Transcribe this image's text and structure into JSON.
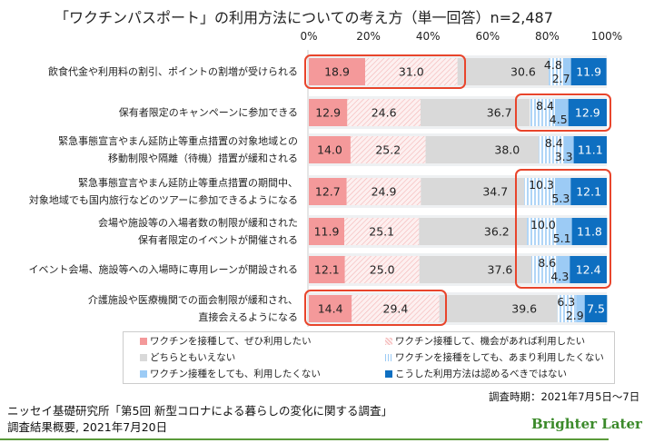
{
  "chart_data": {
    "type": "bar",
    "stacked": true,
    "orientation": "horizontal",
    "title": "「ワクチンパスポート」の利用方法についての考え方（単一回答）n=2,487",
    "xlim": [
      0,
      100
    ],
    "xticks": [
      "0%",
      "20%",
      "40%",
      "60%",
      "80%",
      "100%"
    ],
    "categories": [
      [
        "飲食代金や利用料の割引、ポイントの割増が受けられる"
      ],
      [
        "保有者限定のキャンペーンに参加できる"
      ],
      [
        "緊急事態宣言やまん延防止等重点措置の対象地域との",
        "移動制限や隔離（待機）措置が緩和される"
      ],
      [
        "緊急事態宣言やまん延防止等重点措置の期間中、",
        "対象地域でも国内旅行などのツアーに参加できるようになる"
      ],
      [
        "会場や施設等の入場者数の制限が緩和された",
        "保有者限定のイベントが開催される"
      ],
      [
        "イベント会場、施設等への入場時に専用レーンが開設される"
      ],
      [
        "介護施設や医療機関での面会制限が緩和され、",
        "直接会えるようになる"
      ]
    ],
    "series": [
      {
        "name": "ワクチンを接種して、ぜひ利用したい",
        "color": "#f4999a",
        "values": [
          18.9,
          12.9,
          14.0,
          12.7,
          11.9,
          12.1,
          14.4
        ]
      },
      {
        "name": "ワクチン接種して、機会があれば利用したい",
        "color": "#fbe3e3",
        "values": [
          31.0,
          24.6,
          25.2,
          24.9,
          25.1,
          25.0,
          29.4
        ]
      },
      {
        "name": "どちらともいえない",
        "color": "#d9d9d9",
        "values": [
          30.6,
          36.7,
          38.0,
          34.7,
          36.2,
          37.6,
          39.6
        ]
      },
      {
        "name": "ワクチンを接種をしても、あまり利用したくない",
        "color": "#cfe6fb",
        "values": [
          4.8,
          8.4,
          8.4,
          10.3,
          10.0,
          8.6,
          6.3
        ]
      },
      {
        "name": "ワクチン接種をしても、利用したくない",
        "color": "#9ccbf5",
        "values": [
          2.7,
          4.5,
          3.3,
          5.3,
          5.1,
          4.3,
          2.9
        ]
      },
      {
        "name": "こうした利用方法は認めるべきではない",
        "color": "#0e6fc1",
        "values": [
          11.9,
          12.9,
          11.1,
          12.1,
          11.8,
          12.4,
          7.5
        ]
      }
    ],
    "labels": [
      [
        "18.9",
        "31.0",
        "30.6",
        "4.8",
        "2.7",
        "11.9"
      ],
      [
        "12.9",
        "24.6",
        "36.7",
        "8.4",
        "4.5",
        "12.9"
      ],
      [
        "14.0",
        "25.2",
        "38.0",
        "8.4",
        "3.3",
        "11.1"
      ],
      [
        "12.7",
        "24.9",
        "34.7",
        "10.3",
        "5.3",
        "12.1"
      ],
      [
        "11.9",
        "25.1",
        "36.2",
        "10.0",
        "5.1",
        "11.8"
      ],
      [
        "12.1",
        "25.0",
        "37.6",
        "8.6",
        "4.3",
        "12.4"
      ],
      [
        "14.4",
        "29.4",
        "39.6",
        "6.3",
        "2.9",
        "7.5"
      ]
    ],
    "legend": "bottom"
  },
  "footer": {
    "survey_period": "調査時期：2021年7月5日～7日",
    "source_line1": "ニッセイ基礎研究所「第5回 新型コロナによる暮らしの変化に関する調査」",
    "source_line2": "調査結果概要, 2021年7月20日",
    "logo": "Brighter Later"
  }
}
